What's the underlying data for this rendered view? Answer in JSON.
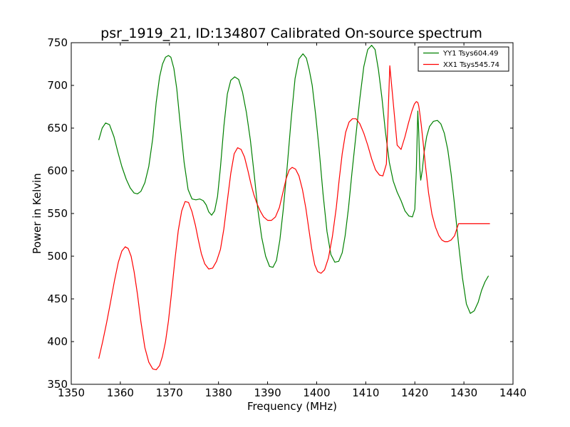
{
  "chart_data": {
    "type": "line",
    "title": "psr_1919_21, ID:134807 Calibrated On-source spectrum",
    "xlabel": "Frequency (MHz)",
    "ylabel": "Power in Kelvin",
    "xlim": [
      1350,
      1440
    ],
    "ylim": [
      350,
      750
    ],
    "xticks": [
      1350,
      1360,
      1370,
      1380,
      1390,
      1400,
      1410,
      1420,
      1430,
      1440
    ],
    "yticks": [
      350,
      400,
      450,
      500,
      550,
      600,
      650,
      700,
      750
    ],
    "grid": false,
    "legend_position": "top-right",
    "series": [
      {
        "name": "YY1 Tsys604.49",
        "color": "#008000",
        "x": [
          1355.6,
          1356.3,
          1357.0,
          1357.8,
          1358.7,
          1359.5,
          1360.3,
          1361.2,
          1362.0,
          1362.8,
          1363.5,
          1364.2,
          1365.0,
          1365.8,
          1366.6,
          1367.3,
          1368.0,
          1368.6,
          1369.2,
          1369.8,
          1370.3,
          1370.9,
          1371.5,
          1372.2,
          1373.0,
          1373.8,
          1374.6,
          1375.4,
          1376.2,
          1376.9,
          1377.5,
          1378.0,
          1378.6,
          1379.2,
          1379.8,
          1380.4,
          1381.1,
          1381.8,
          1382.5,
          1383.3,
          1384.1,
          1384.9,
          1385.7,
          1386.5,
          1387.3,
          1388.0,
          1388.8,
          1389.6,
          1390.4,
          1391.1,
          1391.8,
          1392.5,
          1393.2,
          1394.0,
          1394.8,
          1395.6,
          1396.4,
          1397.2,
          1397.9,
          1398.5,
          1399.1,
          1399.8,
          1400.5,
          1401.3,
          1402.1,
          1402.9,
          1403.7,
          1404.5,
          1405.2,
          1405.8,
          1406.5,
          1407.2,
          1408.0,
          1408.8,
          1409.6,
          1410.4,
          1411.2,
          1411.9,
          1412.6,
          1413.3,
          1414.0,
          1414.8,
          1415.6,
          1416.4,
          1417.2,
          1418.0,
          1418.8,
          1419.5,
          1420.0,
          1420.3,
          1420.6,
          1420.8,
          1421.0,
          1421.2,
          1421.5,
          1421.9,
          1422.4,
          1423.0,
          1423.8,
          1424.6,
          1425.3,
          1426.0,
          1426.7,
          1427.4,
          1428.1,
          1428.9,
          1429.7,
          1430.5,
          1431.3,
          1432.1,
          1432.9,
          1433.6,
          1434.3,
          1435.0
        ],
        "y": [
          636,
          650,
          656,
          654,
          640,
          622,
          605,
          590,
          580,
          574,
          573,
          576,
          586,
          605,
          638,
          680,
          710,
          725,
          733,
          735,
          733,
          720,
          696,
          655,
          610,
          578,
          567,
          566,
          567,
          565,
          560,
          552,
          548,
          553,
          570,
          604,
          652,
          690,
          706,
          710,
          707,
          692,
          668,
          636,
          594,
          555,
          522,
          500,
          488,
          487,
          495,
          519,
          555,
          605,
          660,
          708,
          731,
          737,
          732,
          718,
          700,
          665,
          625,
          573,
          529,
          502,
          493,
          494,
          504,
          524,
          557,
          598,
          642,
          685,
          722,
          742,
          747,
          742,
          718,
          685,
          646,
          610,
          588,
          575,
          565,
          553,
          547,
          546,
          555,
          600,
          670,
          645,
          604,
          589,
          600,
          622,
          640,
          652,
          658,
          659,
          655,
          644,
          625,
          596,
          560,
          515,
          475,
          444,
          433,
          436,
          446,
          460,
          470,
          477
        ]
      },
      {
        "name": "XX1 Tsys545.74",
        "color": "#ff0000",
        "x": [
          1355.6,
          1356.4,
          1357.2,
          1358.0,
          1358.8,
          1359.6,
          1360.3,
          1361.0,
          1361.6,
          1362.2,
          1362.8,
          1363.5,
          1364.2,
          1365.0,
          1365.8,
          1366.6,
          1367.3,
          1368.0,
          1368.6,
          1369.2,
          1369.8,
          1370.4,
          1371.1,
          1371.8,
          1372.5,
          1373.2,
          1373.9,
          1374.6,
          1375.3,
          1375.9,
          1376.5,
          1377.2,
          1378.0,
          1378.8,
          1379.6,
          1380.4,
          1381.1,
          1381.8,
          1382.5,
          1383.2,
          1383.9,
          1384.6,
          1385.3,
          1386.0,
          1386.6,
          1387.2,
          1387.8,
          1388.5,
          1389.2,
          1390.0,
          1390.8,
          1391.6,
          1392.4,
          1393.1,
          1393.8,
          1394.4,
          1395.0,
          1395.7,
          1396.4,
          1397.1,
          1397.8,
          1398.4,
          1399.0,
          1399.6,
          1400.2,
          1400.9,
          1401.6,
          1402.4,
          1403.2,
          1404.0,
          1404.6,
          1405.2,
          1405.9,
          1406.6,
          1407.3,
          1408.0,
          1408.8,
          1409.6,
          1410.4,
          1411.2,
          1412.0,
          1412.8,
          1413.5,
          1414.2,
          1414.9,
          1415.6,
          1416.4,
          1417.2,
          1418.0,
          1418.7,
          1419.4,
          1419.9,
          1420.3,
          1420.6,
          1420.8,
          1421.0,
          1421.3,
          1421.7,
          1422.2,
          1422.8,
          1423.5,
          1424.2,
          1424.9,
          1425.5,
          1426.1,
          1426.7,
          1427.4,
          1428.1,
          1428.9,
          1429.7,
          1430.5,
          1431.3,
          1432.1,
          1432.9,
          1433.7,
          1434.4,
          1435.0,
          1435.3
        ],
        "y": [
          380,
          400,
          422,
          446,
          471,
          493,
          506,
          511,
          509,
          500,
          482,
          455,
          423,
          393,
          376,
          368,
          367,
          372,
          383,
          400,
          424,
          455,
          495,
          530,
          553,
          564,
          563,
          552,
          536,
          519,
          503,
          491,
          485,
          486,
          494,
          508,
          532,
          565,
          597,
          620,
          627,
          625,
          616,
          600,
          585,
          572,
          562,
          553,
          546,
          542,
          542,
          546,
          557,
          574,
          591,
          601,
          604,
          602,
          594,
          578,
          556,
          532,
          508,
          490,
          482,
          480,
          484,
          498,
          523,
          557,
          590,
          620,
          645,
          657,
          661,
          661,
          655,
          644,
          630,
          614,
          601,
          595,
          594,
          608,
          723,
          680,
          630,
          625,
          640,
          656,
          670,
          678,
          681,
          680,
          676,
          668,
          654,
          633,
          604,
          574,
          549,
          534,
          524,
          519,
          517,
          517,
          519,
          524,
          538,
          538,
          538,
          538,
          538,
          538,
          538,
          538,
          538,
          538
        ]
      }
    ]
  }
}
